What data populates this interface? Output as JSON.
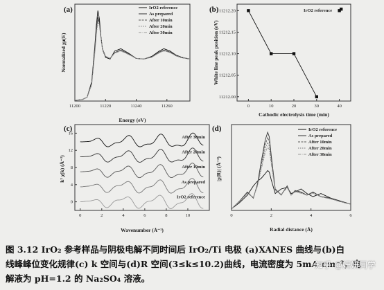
{
  "chart_data": [
    {
      "panel": "(a)",
      "type": "line",
      "xlabel": "Energy (eV)",
      "ylabel": "Normalized χμ(E)",
      "xlim": [
        11200,
        11275
      ],
      "ylim": [
        0,
        3.0
      ],
      "xticks": [
        "11200",
        "11220",
        "11240",
        "11260"
      ],
      "legend": {
        "placement": "top-right",
        "entries": [
          "IrO2 reference",
          "As prepared",
          "After 10min",
          "After 20min",
          "After 30min"
        ]
      },
      "series": [
        {
          "name": "IrO2 reference",
          "x": [
            11200,
            11205,
            11208,
            11211,
            11213,
            11214,
            11215,
            11216,
            11217,
            11218,
            11220,
            11223,
            11226,
            11230,
            11235,
            11240,
            11245,
            11250,
            11255,
            11258,
            11262,
            11266,
            11270,
            11275
          ],
          "y": [
            0.02,
            0.05,
            0.12,
            0.6,
            1.7,
            2.35,
            2.8,
            2.55,
            2.0,
            1.6,
            1.35,
            1.3,
            1.55,
            1.62,
            1.48,
            1.32,
            1.3,
            1.38,
            1.55,
            1.62,
            1.55,
            1.42,
            1.35,
            1.3
          ]
        },
        {
          "name": "As prepared",
          "x": [
            11200,
            11205,
            11208,
            11211,
            11213,
            11214,
            11215,
            11216,
            11217,
            11218,
            11220,
            11223,
            11226,
            11230,
            11235,
            11240,
            11245,
            11250,
            11255,
            11258,
            11262,
            11266,
            11270,
            11275
          ],
          "y": [
            0.02,
            0.05,
            0.12,
            0.55,
            1.6,
            2.2,
            2.6,
            2.45,
            2.0,
            1.62,
            1.38,
            1.32,
            1.5,
            1.58,
            1.46,
            1.32,
            1.3,
            1.36,
            1.52,
            1.58,
            1.52,
            1.4,
            1.34,
            1.3
          ]
        },
        {
          "name": "After 10min",
          "x": [
            11200,
            11205,
            11208,
            11211,
            11213,
            11214,
            11215,
            11216,
            11217,
            11218,
            11220,
            11223,
            11226,
            11230,
            11235,
            11240,
            11245,
            11250,
            11255,
            11258,
            11262,
            11266,
            11270,
            11275
          ],
          "y": [
            0.02,
            0.05,
            0.12,
            0.55,
            1.55,
            2.15,
            2.55,
            2.4,
            1.98,
            1.62,
            1.38,
            1.32,
            1.5,
            1.57,
            1.45,
            1.32,
            1.3,
            1.36,
            1.51,
            1.57,
            1.51,
            1.4,
            1.34,
            1.3
          ]
        },
        {
          "name": "After 20min",
          "x": [
            11200,
            11205,
            11208,
            11211,
            11213,
            11214,
            11215,
            11216,
            11217,
            11218,
            11220,
            11223,
            11226,
            11230,
            11235,
            11240,
            11245,
            11250,
            11255,
            11258,
            11262,
            11266,
            11270,
            11275
          ],
          "y": [
            0.02,
            0.05,
            0.12,
            0.53,
            1.52,
            2.1,
            2.5,
            2.36,
            1.96,
            1.62,
            1.38,
            1.32,
            1.49,
            1.56,
            1.45,
            1.32,
            1.3,
            1.36,
            1.5,
            1.56,
            1.5,
            1.4,
            1.34,
            1.3
          ]
        },
        {
          "name": "After 30min",
          "x": [
            11200,
            11205,
            11208,
            11211,
            11213,
            11214,
            11215,
            11216,
            11217,
            11218,
            11220,
            11223,
            11226,
            11230,
            11235,
            11240,
            11245,
            11250,
            11255,
            11258,
            11262,
            11266,
            11270,
            11275
          ],
          "y": [
            0.02,
            0.05,
            0.12,
            0.5,
            1.48,
            2.05,
            2.45,
            2.32,
            1.94,
            1.6,
            1.37,
            1.32,
            1.48,
            1.55,
            1.44,
            1.32,
            1.3,
            1.35,
            1.49,
            1.55,
            1.5,
            1.4,
            1.34,
            1.3
          ]
        }
      ]
    },
    {
      "panel": "(b)",
      "type": "line",
      "xlabel": "Cathodic electrolysis time (min)",
      "ylabel": "White line peak position (eV)",
      "xlim": [
        -5,
        45
      ],
      "ylim": [
        11212.0,
        11212.2
      ],
      "xticks": [
        "0",
        "10",
        "20",
        "30",
        "40"
      ],
      "yticks": [
        "11212.00",
        "11212.05",
        "11212.10",
        "11212.15",
        "11212.20"
      ],
      "legend": {
        "placement": "top-right",
        "entries": [
          "IrO2 reference"
        ]
      },
      "series": [
        {
          "x": [
            0,
            10,
            20,
            30
          ],
          "y": [
            11212.2,
            11212.1,
            11212.1,
            11212.0
          ]
        }
      ],
      "reference": {
        "name": "IrO2 reference",
        "x": 40,
        "y": 11212.2
      }
    },
    {
      "panel": "(c)",
      "type": "line",
      "xlabel": "Wavenumber (Å⁻¹)",
      "ylabel": "k² χ(k) (Å⁻²)",
      "xlim": [
        -0.5,
        12
      ],
      "ylim": [
        -2,
        18
      ],
      "xticks": [
        "0",
        "2",
        "4",
        "6",
        "8",
        "10"
      ],
      "yticks": [
        "0",
        "4",
        "8",
        "12",
        "16"
      ],
      "annotations": [
        "After 30min",
        "After 20min",
        "After 10min",
        "As prepared",
        "IrO2 reference"
      ],
      "series": [
        {
          "name": "After 30min",
          "offset": 14
        },
        {
          "name": "After 20min",
          "offset": 10.5
        },
        {
          "name": "After 10min",
          "offset": 7
        },
        {
          "name": "As prepared",
          "offset": 3.5
        },
        {
          "name": "IrO2 reference",
          "offset": 0
        }
      ]
    },
    {
      "panel": "(d)",
      "type": "line",
      "xlabel": "Radial distance (Å)",
      "ylabel": "|χ(R)| (Å⁻³)",
      "xlim": [
        0,
        6
      ],
      "ylim": [
        0,
        2.8
      ],
      "xticks": [
        "0",
        "2",
        "4",
        "6"
      ],
      "legend": {
        "placement": "top-right",
        "entries": [
          "IrO2 reference",
          "As prepared",
          "After 10min",
          "After 20min",
          "After 30min"
        ]
      },
      "series": [
        {
          "name": "IrO2 reference",
          "x": [
            0,
            0.4,
            0.8,
            1.1,
            1.3,
            1.5,
            1.7,
            1.82,
            1.9,
            2.0,
            2.2,
            2.5,
            2.8,
            3.0,
            3.2,
            3.5,
            3.8,
            4.1,
            4.5,
            5.0,
            5.5,
            6.0
          ],
          "y": [
            0.05,
            0.25,
            0.5,
            0.8,
            0.95,
            1.05,
            1.2,
            1.3,
            1.25,
            1.0,
            0.55,
            0.7,
            0.75,
            0.55,
            0.6,
            0.7,
            0.55,
            0.45,
            0.55,
            0.4,
            0.3,
            0.2
          ]
        },
        {
          "name": "As prepared",
          "x": [
            0,
            0.4,
            0.8,
            1.1,
            1.3,
            1.5,
            1.7,
            1.82,
            1.9,
            2.0,
            2.2,
            2.5,
            2.8,
            3.0,
            3.2,
            3.5,
            3.8,
            4.1,
            4.5,
            5.0,
            5.5,
            6.0
          ],
          "y": [
            0.05,
            0.3,
            0.6,
            0.4,
            0.85,
            1.6,
            2.3,
            2.55,
            2.4,
            1.8,
            0.7,
            0.5,
            0.8,
            0.5,
            0.65,
            0.6,
            0.5,
            0.6,
            0.45,
            0.4,
            0.3,
            0.2
          ]
        },
        {
          "name": "After 10min",
          "x": [
            0,
            0.4,
            0.8,
            1.1,
            1.3,
            1.5,
            1.7,
            1.82,
            1.9,
            2.0,
            2.2,
            2.5,
            2.8,
            3.0,
            3.2,
            3.5,
            3.8,
            4.1,
            4.5,
            5.0,
            5.5,
            6.0
          ],
          "y": [
            0.05,
            0.3,
            0.58,
            0.42,
            0.82,
            1.5,
            2.15,
            2.38,
            2.25,
            1.7,
            0.68,
            0.52,
            0.78,
            0.5,
            0.64,
            0.58,
            0.5,
            0.58,
            0.45,
            0.38,
            0.28,
            0.2
          ]
        },
        {
          "name": "After 20min",
          "x": [
            0,
            0.4,
            0.8,
            1.1,
            1.3,
            1.5,
            1.7,
            1.82,
            1.9,
            2.0,
            2.2,
            2.5,
            2.8,
            3.0,
            3.2,
            3.5,
            3.8,
            4.1,
            4.5,
            5.0,
            5.5,
            6.0
          ],
          "y": [
            0.05,
            0.28,
            0.56,
            0.42,
            0.8,
            1.42,
            2.0,
            2.22,
            2.1,
            1.6,
            0.66,
            0.52,
            0.76,
            0.5,
            0.62,
            0.57,
            0.5,
            0.57,
            0.44,
            0.38,
            0.28,
            0.2
          ]
        },
        {
          "name": "After 30min",
          "x": [
            0,
            0.4,
            0.8,
            1.1,
            1.3,
            1.5,
            1.7,
            1.82,
            1.9,
            2.0,
            2.2,
            2.5,
            2.8,
            3.0,
            3.2,
            3.5,
            3.8,
            4.1,
            4.5,
            5.0,
            5.5,
            6.0
          ],
          "y": [
            0.05,
            0.28,
            0.55,
            0.43,
            0.78,
            1.35,
            1.88,
            2.08,
            1.98,
            1.52,
            0.64,
            0.52,
            0.74,
            0.5,
            0.6,
            0.56,
            0.49,
            0.56,
            0.44,
            0.37,
            0.28,
            0.2
          ]
        }
      ]
    }
  ],
  "caption": {
    "line1": "图 3.12 IrO₂ 参考样品与阴极电解不同时间后 IrO₂/Ti 电极 (a)XANES 曲线与(b)白",
    "line2": "线峰峰位变化规律(c) k 空间与(d)R 空间(3≤k≤10.2)曲线，电流密度为 5mA·cm⁻²，电",
    "line3": "解液为 pH=1.2 的 Na₂SO₄ 溶液。"
  },
  "watermark": "知乎 @妍妍同学",
  "colors": {
    "ink": "#222222",
    "background": "#eeeeec"
  }
}
